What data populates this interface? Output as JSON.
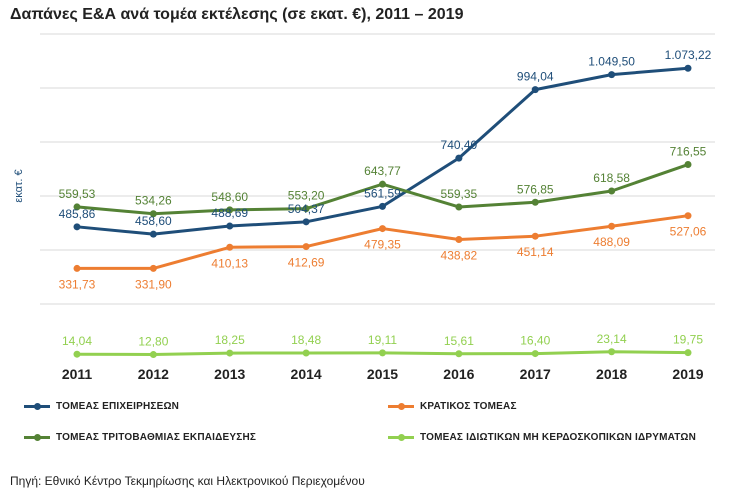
{
  "title": "Δαπάνες Ε&Α ανά τομέα εκτέλεσης (σε εκατ. €), 2011 – 2019",
  "source": "Πηγή: Εθνικό Κέντρο Τεκμηρίωσης και Ηλεκτρονικού Περιεχομένου",
  "chart_data": {
    "type": "line",
    "title": "Δαπάνες Ε&Α ανά τομέα εκτέλεσης (σε εκατ. €), 2011 – 2019",
    "xlabel": "",
    "ylabel": "εκατ. €",
    "categories": [
      "2011",
      "2012",
      "2013",
      "2014",
      "2015",
      "2016",
      "2017",
      "2018",
      "2019"
    ],
    "ylim": [
      0,
      1200
    ],
    "grid": true,
    "legend_position": "bottom",
    "series": [
      {
        "name": "ΤΟΜΕΑΣ ΕΠΙΧΕΙΡΗΣΕΩΝ",
        "color": "#1f4e79",
        "values": [
          485.86,
          458.6,
          488.69,
          504.37,
          561.59,
          740.4,
          994.04,
          1049.5,
          1073.22
        ],
        "labels": [
          "485,86",
          "458,60",
          "488,69",
          "504,37",
          "561,59",
          "740,40",
          "994,04",
          "1.049,50",
          "1.073,22"
        ],
        "label_color": "#1f4e79",
        "label_position": [
          "above",
          "above",
          "above",
          "above",
          "above",
          "above",
          "above",
          "above",
          "above"
        ]
      },
      {
        "name": "ΚΡΑΤΙΚΟΣ ΤΟΜΕΑΣ",
        "color": "#ed7d31",
        "values": [
          331.73,
          331.9,
          410.13,
          412.69,
          479.35,
          438.82,
          451.14,
          488.09,
          527.06
        ],
        "labels": [
          "331,73",
          "331,90",
          "410,13",
          "412,69",
          "479,35",
          "438,82",
          "451,14",
          "488,09",
          "527,06"
        ],
        "label_color": "#ed7d31",
        "label_position": [
          "below",
          "below",
          "below",
          "below",
          "below",
          "below",
          "below",
          "below",
          "below"
        ]
      },
      {
        "name": "ΤΟΜΕΑΣ ΤΡΙΤΟΒΑΘΜΙΑΣ ΕΚΠΑΙΔΕΥΣΗΣ",
        "color": "#548235",
        "values": [
          559.53,
          534.26,
          548.6,
          553.2,
          643.77,
          559.35,
          576.85,
          618.58,
          716.55
        ],
        "labels": [
          "559,53",
          "534,26",
          "548,60",
          "553,20",
          "643,77",
          "559,35",
          "576,85",
          "618,58",
          "716,55"
        ],
        "label_color": "#548235",
        "label_position": [
          "above",
          "above",
          "above",
          "above",
          "above",
          "above",
          "above",
          "above",
          "above"
        ]
      },
      {
        "name": "ΤΟΜΕΑΣ ΙΔΙΩΤΙΚΩΝ ΜΗ ΚΕΡΔΟΣΚΟΠΙΚΩΝ ΙΔΡΥΜΑΤΩΝ",
        "color": "#92d050",
        "values": [
          14.04,
          12.8,
          18.25,
          18.48,
          19.11,
          15.61,
          16.4,
          23.14,
          19.75
        ],
        "labels": [
          "14,04",
          "12,80",
          "18,25",
          "18,48",
          "19,11",
          "15,61",
          "16,40",
          "23,14",
          "19,75"
        ],
        "label_color": "#92d050",
        "label_position": [
          "above",
          "above",
          "above",
          "above",
          "above",
          "above",
          "above",
          "above",
          "above"
        ]
      }
    ]
  }
}
